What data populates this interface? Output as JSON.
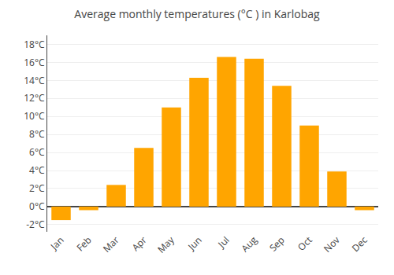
{
  "chart_data": {
    "type": "bar",
    "title": "Average monthly temperatures (°C ) in Karlobag",
    "categories": [
      "Jan",
      "Feb",
      "Mar",
      "Apr",
      "May",
      "Jun",
      "Jul",
      "Aug",
      "Sep",
      "Oct",
      "Nov",
      "Dec"
    ],
    "values": [
      -1.5,
      -0.4,
      2.4,
      6.5,
      11.0,
      14.3,
      16.6,
      16.4,
      13.4,
      9.0,
      3.9,
      -0.4
    ],
    "color": "#FFA500",
    "ylim": [
      -2.8,
      19.0
    ],
    "yticks": [
      {
        "value": -2,
        "label": "-2°C"
      },
      {
        "value": 0,
        "label": "0°C"
      },
      {
        "value": 2,
        "label": "2°C"
      },
      {
        "value": 4,
        "label": "4°C"
      },
      {
        "value": 6,
        "label": "6°C"
      },
      {
        "value": 8,
        "label": "8°C"
      },
      {
        "value": 10,
        "label": "10°C"
      },
      {
        "value": 12,
        "label": "12°C"
      },
      {
        "value": 14,
        "label": "14°C"
      },
      {
        "value": 16,
        "label": "16°C"
      },
      {
        "value": 18,
        "label": "18°C"
      }
    ],
    "grid": true
  }
}
